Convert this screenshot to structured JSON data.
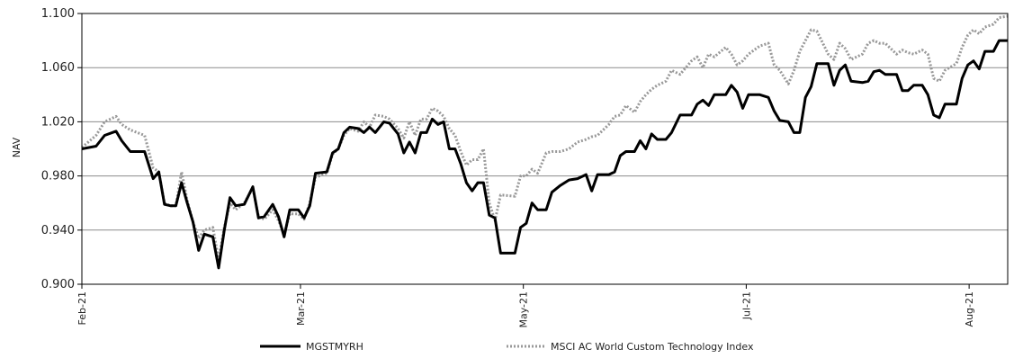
{
  "chart_data": {
    "type": "line",
    "title": "",
    "xlabel": "",
    "ylabel": "NAV",
    "ylim": [
      0.9,
      1.1
    ],
    "yticks": [
      "0.900",
      "0.940",
      "0.980",
      "1.020",
      "1.060",
      "1.100"
    ],
    "ytick_values": [
      0.9,
      0.94,
      0.98,
      1.02,
      1.06,
      1.1
    ],
    "xticks": [
      "Feb-21",
      "Mar-21",
      "May-21",
      "Jul-21",
      "Aug-21"
    ],
    "xtick_positions": [
      0,
      51,
      103,
      155,
      207
    ],
    "x_count": 216,
    "grid": true,
    "legend_position": "bottom",
    "series": [
      {
        "name": "MGSTMYRH",
        "color": "#000000",
        "style": "solid",
        "points": [
          [
            0,
            1.0
          ],
          [
            5,
            1.002
          ],
          [
            8,
            1.01
          ],
          [
            12,
            1.013
          ],
          [
            14,
            1.006
          ],
          [
            17,
            0.998
          ],
          [
            22,
            0.998
          ],
          [
            25,
            0.978
          ],
          [
            27,
            0.983
          ],
          [
            29,
            0.959
          ],
          [
            31,
            0.958
          ],
          [
            33,
            0.958
          ],
          [
            35,
            0.975
          ],
          [
            37,
            0.96
          ],
          [
            39,
            0.946
          ],
          [
            41,
            0.925
          ],
          [
            43,
            0.937
          ],
          [
            46,
            0.935
          ],
          [
            48,
            0.912
          ],
          [
            50,
            0.94
          ],
          [
            52,
            0.964
          ],
          [
            54,
            0.958
          ],
          [
            57,
            0.959
          ],
          [
            60,
            0.972
          ],
          [
            62,
            0.949
          ],
          [
            64,
            0.95
          ],
          [
            67,
            0.959
          ],
          [
            69,
            0.95
          ],
          [
            71,
            0.935
          ],
          [
            73,
            0.955
          ],
          [
            76,
            0.955
          ],
          [
            78,
            0.949
          ],
          [
            80,
            0.958
          ],
          [
            82,
            0.982
          ],
          [
            86,
            0.983
          ],
          [
            88,
            0.997
          ],
          [
            90,
            1.0
          ],
          [
            92,
            1.012
          ],
          [
            94,
            1.016
          ],
          [
            97,
            1.015
          ],
          [
            99,
            1.012
          ],
          [
            101,
            1.016
          ],
          [
            103,
            1.012
          ],
          [
            106,
            1.02
          ],
          [
            108,
            1.019
          ],
          [
            111,
            1.011
          ],
          [
            113,
            0.997
          ],
          [
            115,
            1.005
          ],
          [
            117,
            0.997
          ],
          [
            119,
            1.012
          ],
          [
            121,
            1.012
          ],
          [
            123,
            1.022
          ],
          [
            125,
            1.018
          ],
          [
            127,
            1.02
          ],
          [
            129,
            1.0
          ],
          [
            131,
            1.0
          ],
          [
            133,
            0.989
          ],
          [
            135,
            0.975
          ],
          [
            137,
            0.969
          ],
          [
            139,
            0.975
          ],
          [
            141,
            0.975
          ],
          [
            143,
            0.951
          ],
          [
            145,
            0.949
          ],
          [
            147,
            0.923
          ],
          [
            152,
            0.923
          ],
          [
            154,
            0.942
          ],
          [
            156,
            0.945
          ],
          [
            158,
            0.96
          ],
          [
            160,
            0.955
          ],
          [
            163,
            0.955
          ],
          [
            165,
            0.968
          ],
          [
            168,
            0.973
          ],
          [
            171,
            0.977
          ],
          [
            174,
            0.978
          ],
          [
            177,
            0.981
          ],
          [
            179,
            0.969
          ],
          [
            181,
            0.981
          ],
          [
            185,
            0.981
          ],
          [
            187,
            0.983
          ],
          [
            189,
            0.995
          ],
          [
            191,
            0.998
          ],
          [
            194,
            0.998
          ],
          [
            196,
            1.006
          ],
          [
            198,
            1.0
          ],
          [
            200,
            1.011
          ],
          [
            202,
            1.007
          ],
          [
            205,
            1.007
          ],
          [
            207,
            1.012
          ],
          [
            210,
            1.025
          ],
          [
            214,
            1.025
          ],
          [
            216,
            1.033
          ],
          [
            218,
            1.036
          ],
          [
            220,
            1.032
          ],
          [
            222,
            1.04
          ],
          [
            226,
            1.04
          ],
          [
            228,
            1.047
          ],
          [
            230,
            1.042
          ],
          [
            232,
            1.03
          ],
          [
            234,
            1.04
          ],
          [
            238,
            1.04
          ],
          [
            241,
            1.038
          ],
          [
            243,
            1.028
          ],
          [
            245,
            1.021
          ],
          [
            248,
            1.02
          ],
          [
            250,
            1.012
          ],
          [
            252,
            1.012
          ],
          [
            254,
            1.038
          ],
          [
            256,
            1.046
          ],
          [
            258,
            1.063
          ],
          [
            262,
            1.063
          ],
          [
            264,
            1.047
          ],
          [
            266,
            1.058
          ],
          [
            268,
            1.062
          ],
          [
            270,
            1.05
          ],
          [
            274,
            1.049
          ],
          [
            276,
            1.05
          ],
          [
            278,
            1.057
          ],
          [
            280,
            1.058
          ],
          [
            282,
            1.055
          ],
          [
            286,
            1.055
          ],
          [
            288,
            1.043
          ],
          [
            290,
            1.043
          ],
          [
            292,
            1.047
          ],
          [
            295,
            1.047
          ],
          [
            297,
            1.04
          ],
          [
            299,
            1.025
          ],
          [
            301,
            1.023
          ],
          [
            303,
            1.033
          ],
          [
            307,
            1.033
          ],
          [
            309,
            1.052
          ],
          [
            311,
            1.062
          ],
          [
            313,
            1.065
          ],
          [
            315,
            1.059
          ],
          [
            317,
            1.072
          ],
          [
            320,
            1.072
          ],
          [
            322,
            1.08
          ],
          [
            325,
            1.08
          ]
        ]
      },
      {
        "name": "MSCI AC World Custom Technology Index",
        "color": "#999999",
        "style": "dotted",
        "points": [
          [
            0,
            1.001
          ],
          [
            5,
            1.01
          ],
          [
            8,
            1.02
          ],
          [
            12,
            1.024
          ],
          [
            14,
            1.018
          ],
          [
            17,
            1.014
          ],
          [
            22,
            1.01
          ],
          [
            25,
            0.986
          ],
          [
            27,
            0.983
          ],
          [
            29,
            0.96
          ],
          [
            31,
            0.958
          ],
          [
            33,
            0.958
          ],
          [
            35,
            0.983
          ],
          [
            37,
            0.962
          ],
          [
            39,
            0.946
          ],
          [
            41,
            0.934
          ],
          [
            43,
            0.94
          ],
          [
            46,
            0.942
          ],
          [
            48,
            0.918
          ],
          [
            50,
            0.942
          ],
          [
            52,
            0.96
          ],
          [
            54,
            0.955
          ],
          [
            57,
            0.96
          ],
          [
            60,
            0.971
          ],
          [
            62,
            0.95
          ],
          [
            64,
            0.948
          ],
          [
            67,
            0.955
          ],
          [
            69,
            0.947
          ],
          [
            71,
            0.937
          ],
          [
            73,
            0.952
          ],
          [
            76,
            0.952
          ],
          [
            78,
            0.948
          ],
          [
            80,
            0.96
          ],
          [
            82,
            0.979
          ],
          [
            86,
            0.982
          ],
          [
            88,
            0.996
          ],
          [
            90,
            1.0
          ],
          [
            92,
            1.01
          ],
          [
            94,
            1.015
          ],
          [
            97,
            1.013
          ],
          [
            99,
            1.02
          ],
          [
            101,
            1.016
          ],
          [
            103,
            1.025
          ],
          [
            106,
            1.024
          ],
          [
            108,
            1.022
          ],
          [
            111,
            1.015
          ],
          [
            113,
            1.008
          ],
          [
            115,
            1.02
          ],
          [
            117,
            1.01
          ],
          [
            119,
            1.022
          ],
          [
            121,
            1.022
          ],
          [
            123,
            1.03
          ],
          [
            125,
            1.028
          ],
          [
            127,
            1.024
          ],
          [
            129,
            1.015
          ],
          [
            131,
            1.01
          ],
          [
            133,
            0.998
          ],
          [
            135,
            0.988
          ],
          [
            137,
            0.992
          ],
          [
            139,
            0.992
          ],
          [
            141,
            1.0
          ],
          [
            143,
            0.96
          ],
          [
            145,
            0.947
          ],
          [
            147,
            0.966
          ],
          [
            152,
            0.965
          ],
          [
            154,
            0.98
          ],
          [
            156,
            0.98
          ],
          [
            158,
            0.985
          ],
          [
            160,
            0.982
          ],
          [
            163,
            0.997
          ],
          [
            165,
            0.998
          ],
          [
            168,
            0.998
          ],
          [
            171,
            1.0
          ],
          [
            174,
            1.005
          ],
          [
            177,
            1.007
          ],
          [
            179,
            1.009
          ],
          [
            181,
            1.01
          ],
          [
            185,
            1.018
          ],
          [
            187,
            1.024
          ],
          [
            189,
            1.025
          ],
          [
            191,
            1.032
          ],
          [
            194,
            1.027
          ],
          [
            196,
            1.035
          ],
          [
            198,
            1.04
          ],
          [
            200,
            1.044
          ],
          [
            202,
            1.047
          ],
          [
            205,
            1.05
          ],
          [
            207,
            1.058
          ],
          [
            210,
            1.055
          ],
          [
            214,
            1.065
          ],
          [
            216,
            1.068
          ],
          [
            218,
            1.06
          ],
          [
            220,
            1.07
          ],
          [
            222,
            1.068
          ],
          [
            226,
            1.075
          ],
          [
            228,
            1.07
          ],
          [
            230,
            1.062
          ],
          [
            232,
            1.065
          ],
          [
            234,
            1.07
          ],
          [
            238,
            1.076
          ],
          [
            241,
            1.078
          ],
          [
            243,
            1.062
          ],
          [
            245,
            1.058
          ],
          [
            248,
            1.048
          ],
          [
            250,
            1.058
          ],
          [
            252,
            1.072
          ],
          [
            254,
            1.08
          ],
          [
            256,
            1.088
          ],
          [
            258,
            1.087
          ],
          [
            262,
            1.07
          ],
          [
            264,
            1.066
          ],
          [
            266,
            1.078
          ],
          [
            268,
            1.074
          ],
          [
            270,
            1.066
          ],
          [
            274,
            1.07
          ],
          [
            276,
            1.078
          ],
          [
            278,
            1.08
          ],
          [
            280,
            1.078
          ],
          [
            282,
            1.078
          ],
          [
            286,
            1.07
          ],
          [
            288,
            1.073
          ],
          [
            290,
            1.071
          ],
          [
            292,
            1.07
          ],
          [
            295,
            1.073
          ],
          [
            297,
            1.07
          ],
          [
            299,
            1.052
          ],
          [
            301,
            1.05
          ],
          [
            303,
            1.058
          ],
          [
            307,
            1.063
          ],
          [
            309,
            1.075
          ],
          [
            311,
            1.084
          ],
          [
            313,
            1.088
          ],
          [
            315,
            1.085
          ],
          [
            317,
            1.09
          ],
          [
            320,
            1.092
          ],
          [
            322,
            1.097
          ],
          [
            325,
            1.098
          ]
        ]
      }
    ]
  }
}
